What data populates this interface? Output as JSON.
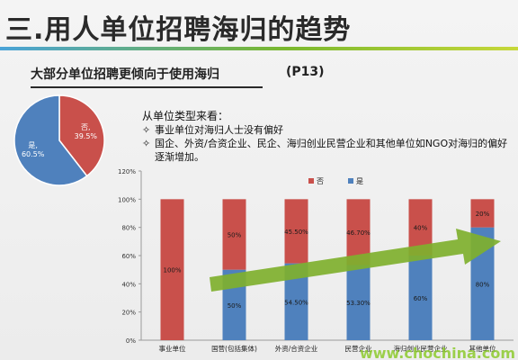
{
  "slide": {
    "title": "三.用人单位招聘海归的趋势",
    "subtitle": "大部分单位招聘更倾向于使用海归",
    "page_ref": "(P13)"
  },
  "notes": {
    "heading": "从单位类型来看：",
    "bullet_symbol": "✧",
    "items": [
      "事业单位对海归人士没有偏好",
      "国企、外资/合资企业、民企、海归创业民营企业和其他单位如NGO对海归的偏好逐渐增加。"
    ]
  },
  "watermark": "www.chochina.com",
  "colors": {
    "no": "#c9504b",
    "yes": "#4f81bd",
    "arrow": "#7fb02e",
    "watermark": "#8ecb2e"
  },
  "chart_data": [
    {
      "type": "pie",
      "slices": [
        {
          "label": "否",
          "value": 39.5,
          "display": "39.5%",
          "color": "#c9504b"
        },
        {
          "label": "是",
          "value": 60.5,
          "display": "60.5%",
          "color": "#4f81bd"
        }
      ]
    },
    {
      "type": "bar",
      "stacked": true,
      "categories": [
        "事业单位",
        "国营(包括集体)",
        "外资/合资企业",
        "民营企业",
        "海归创业民营企业",
        "其他单位"
      ],
      "series": [
        {
          "name": "是",
          "values": [
            0,
            50,
            54.5,
            53.3,
            60,
            80
          ],
          "labels": [
            "",
            "50%",
            "54.50%",
            "53.30%",
            "60%",
            "80%"
          ],
          "color": "#4f81bd"
        },
        {
          "name": "否",
          "values": [
            100,
            50,
            45.5,
            46.7,
            40,
            20
          ],
          "labels": [
            "100%",
            "50%",
            "45.50%",
            "46.70%",
            "40%",
            "20%"
          ],
          "color": "#c9504b"
        }
      ],
      "y_ticks": [
        "0%",
        "20%",
        "40%",
        "60%",
        "80%",
        "100%",
        "120%"
      ],
      "ylim": [
        0,
        120
      ],
      "legend": [
        "否",
        "是"
      ],
      "legend_position": "top",
      "grid": false,
      "annotation": "upward trend arrow"
    }
  ]
}
